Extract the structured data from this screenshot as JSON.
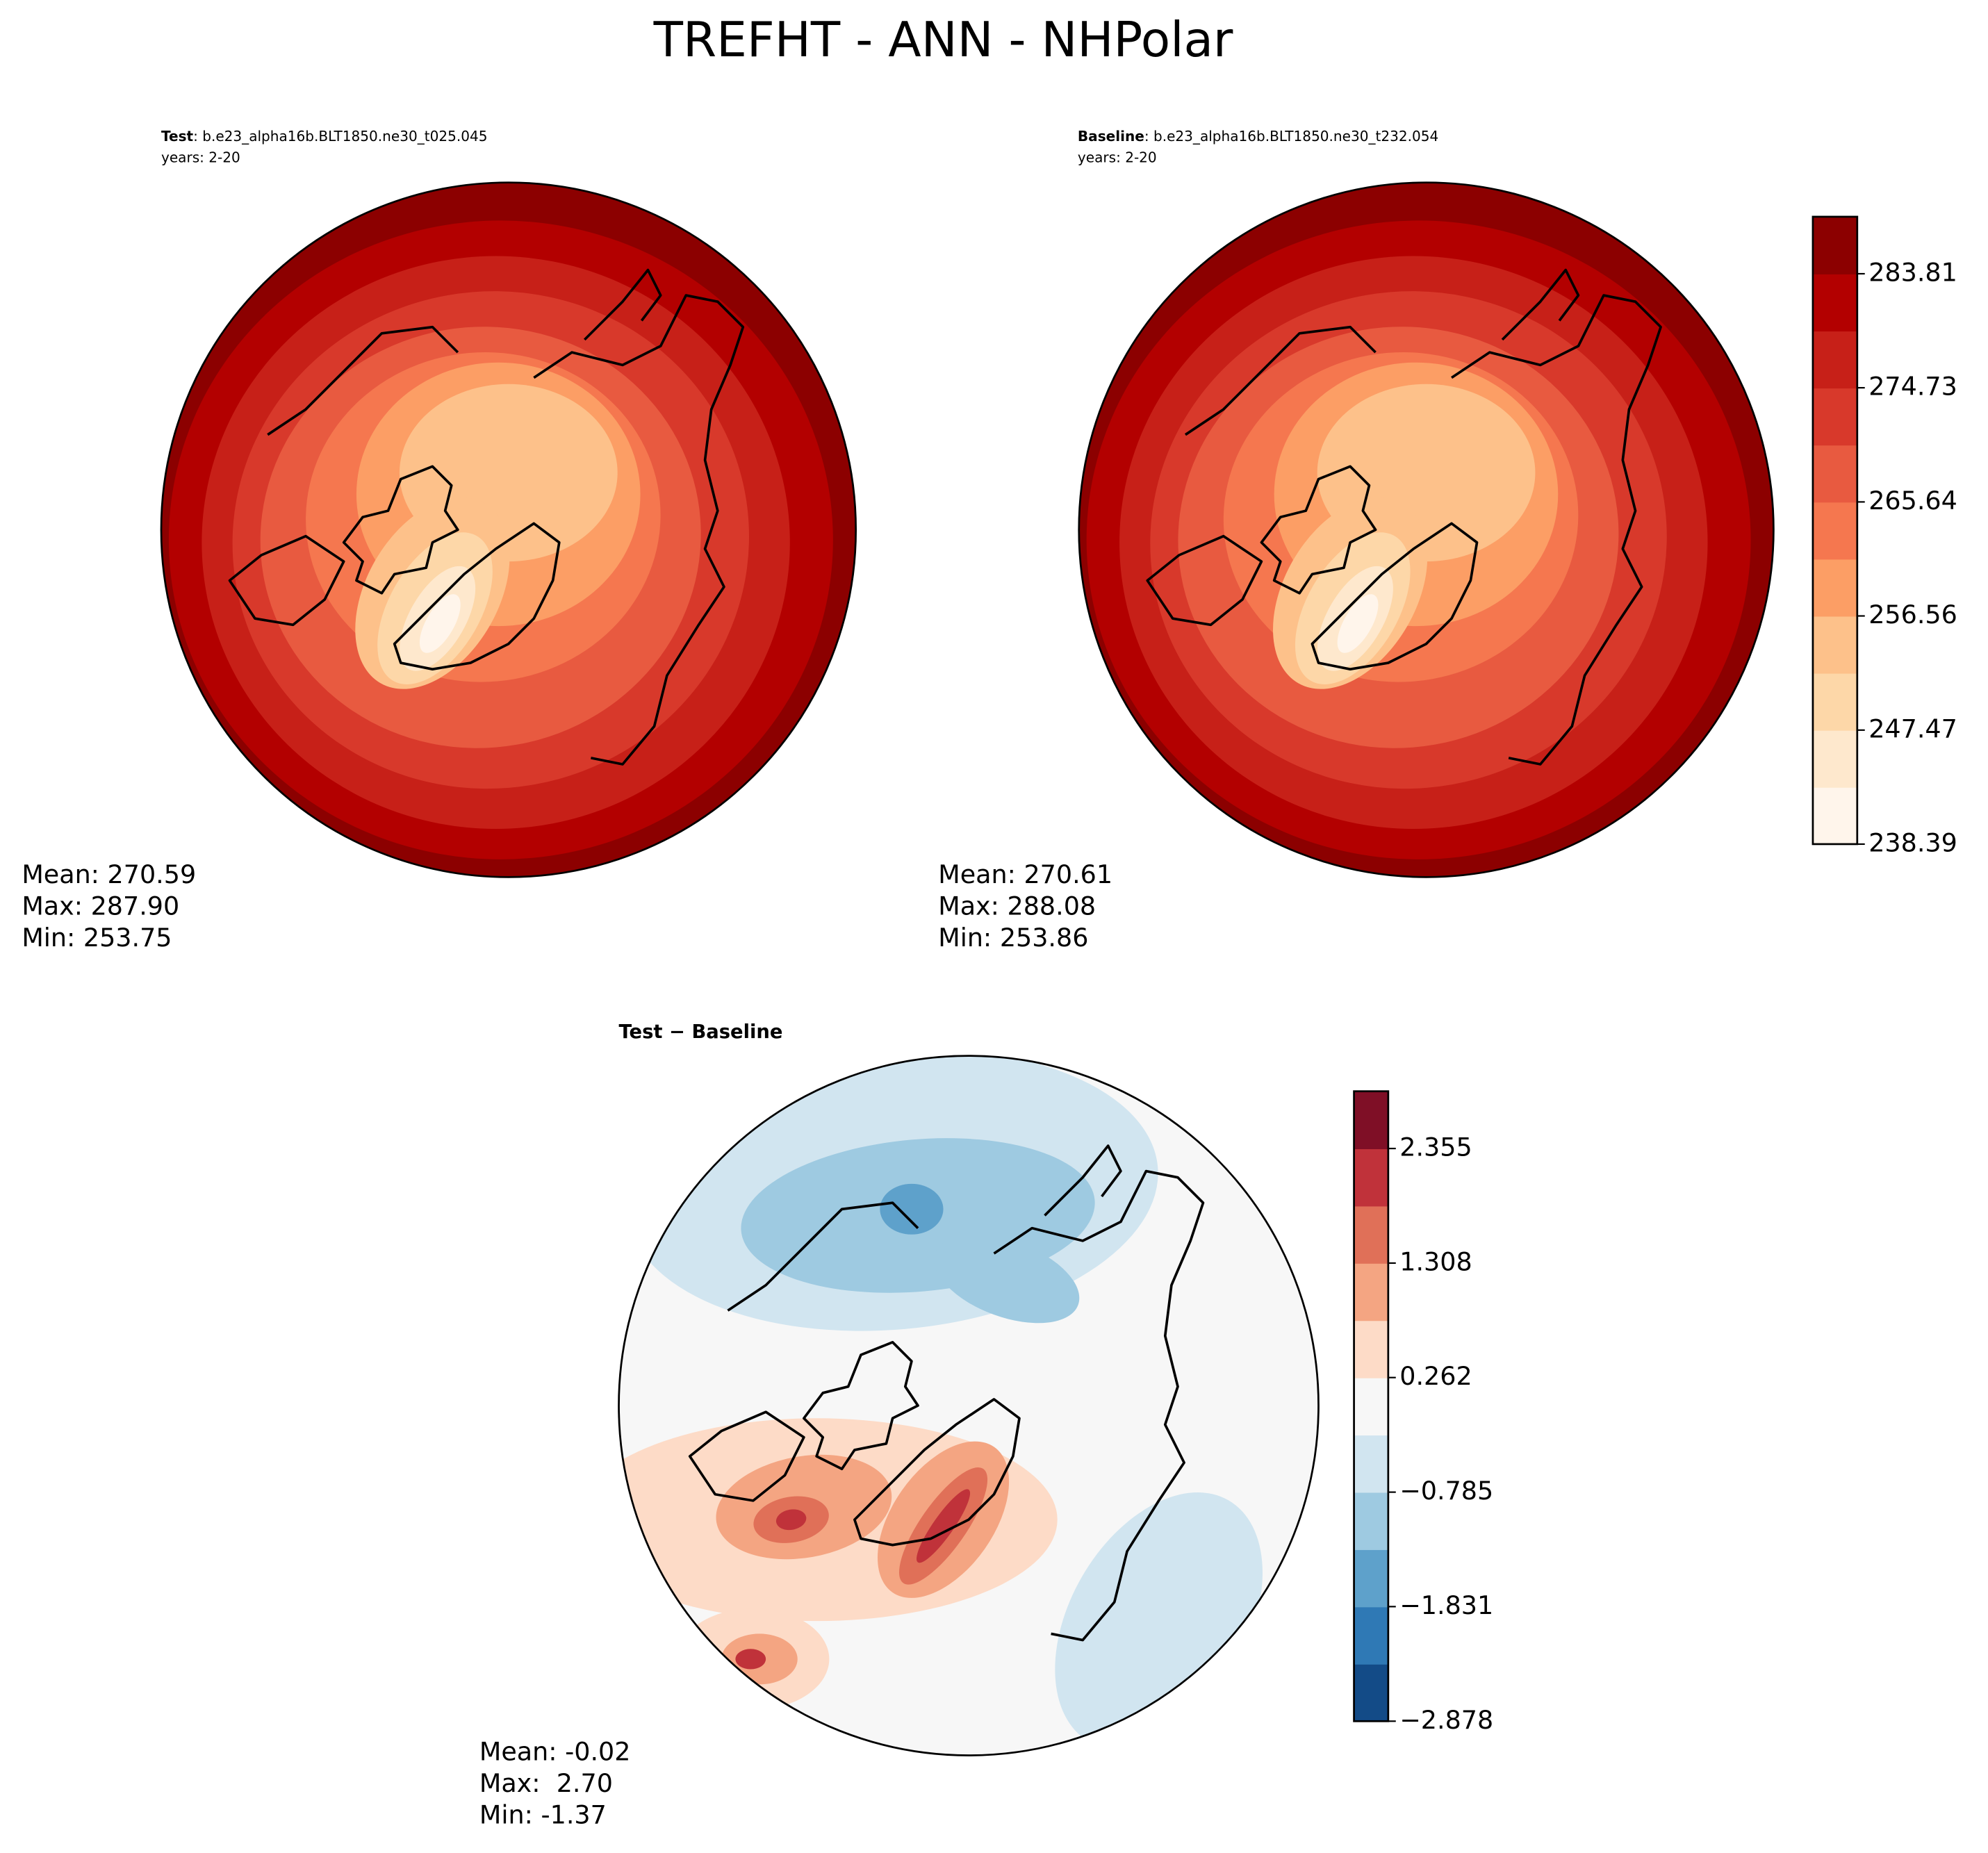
{
  "title": "TREFHT - ANN - NHPolar",
  "panels": [
    {
      "label": "Test",
      "case": ": b.e23_alpha16b.BLT1850.ne30_t025.045",
      "years": "years: 2-20",
      "stats": [
        "Mean: 270.59",
        "Max: 287.90",
        "Min: 253.75"
      ]
    },
    {
      "label": "Baseline",
      "case": ": b.e23_alpha16b.BLT1850.ne30_t232.054",
      "years": "years: 2-20",
      "stats": [
        "Mean: 270.61",
        "Max: 288.08",
        "Min: 253.86"
      ]
    },
    {
      "label": "Test − Baseline",
      "stats": [
        "Mean: -0.02",
        "Max:  2.70",
        "Min: -1.37"
      ]
    }
  ],
  "colorbars": [
    {
      "ylim": [
        238.39,
        288.35
      ],
      "yticks": [
        238.39,
        247.47,
        256.56,
        265.64,
        274.73,
        283.81
      ],
      "colors": [
        "#fff5eb",
        "#fee8cd",
        "#fdd7a8",
        "#fdc18a",
        "#fc9e65",
        "#f5774f",
        "#e85a40",
        "#d8392b",
        "#c72018",
        "#b30000",
        "#8c0000"
      ]
    },
    {
      "ylim": [
        -2.878,
        2.878
      ],
      "yticks": [
        {
          "value": -2.878,
          "label": "−2.878"
        },
        {
          "value": -1.831,
          "label": "−1.831"
        },
        {
          "value": -0.785,
          "label": "−0.785"
        },
        0.262,
        1.308,
        2.355
      ],
      "colors": [
        "#134b87",
        "#2f79b5",
        "#5ea1cb",
        "#9ecae1",
        "#d1e5f0",
        "#f7f7f7",
        "#fddbc7",
        "#f4a582",
        "#e07058",
        "#c0323a",
        "#7f0f26"
      ]
    }
  ]
}
